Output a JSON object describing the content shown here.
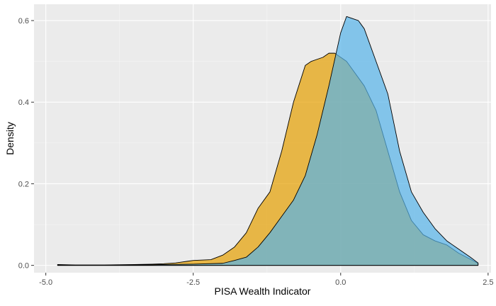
{
  "chart_data": {
    "type": "area",
    "title": "",
    "xlabel": "PISA Wealth Indicator",
    "ylabel": "Density",
    "xlim": [
      -5.2,
      2.55
    ],
    "ylim": [
      -0.018,
      0.64
    ],
    "x_ticks": [
      -5.0,
      -2.5,
      0.0,
      2.5
    ],
    "x_tick_labels": [
      "-5.0",
      "-2.5",
      "0.0",
      "2.5"
    ],
    "y_ticks": [
      0.0,
      0.2,
      0.4,
      0.6
    ],
    "y_tick_labels": [
      "0.0",
      "0.2",
      "0.4",
      "0.6"
    ],
    "grid": true,
    "legend": "none",
    "series": [
      {
        "color": "#E69F00",
        "fill_opacity": 0.7,
        "x": [
          -4.8,
          -4.5,
          -4.0,
          -3.5,
          -3.2,
          -3.0,
          -2.8,
          -2.6,
          -2.5,
          -2.2,
          -2.0,
          -1.8,
          -1.6,
          -1.4,
          -1.2,
          -1.0,
          -0.8,
          -0.6,
          -0.5,
          -0.4,
          -0.3,
          -0.2,
          -0.1,
          0.0,
          0.1,
          0.2,
          0.4,
          0.6,
          0.8,
          1.0,
          1.2,
          1.4,
          1.6,
          1.8,
          2.0,
          2.2,
          2.33
        ],
        "y": [
          0.002,
          0.001,
          0.001,
          0.002,
          0.003,
          0.004,
          0.006,
          0.01,
          0.012,
          0.014,
          0.025,
          0.045,
          0.08,
          0.14,
          0.18,
          0.28,
          0.4,
          0.49,
          0.5,
          0.505,
          0.51,
          0.52,
          0.52,
          0.51,
          0.5,
          0.48,
          0.44,
          0.38,
          0.28,
          0.18,
          0.11,
          0.075,
          0.06,
          0.05,
          0.03,
          0.015,
          0.005
        ]
      },
      {
        "color": "#56B4E9",
        "fill_opacity": 0.7,
        "x": [
          -4.8,
          -4.0,
          -3.5,
          -3.0,
          -2.5,
          -2.0,
          -1.8,
          -1.6,
          -1.4,
          -1.2,
          -1.0,
          -0.8,
          -0.6,
          -0.4,
          -0.2,
          0.0,
          0.1,
          0.2,
          0.3,
          0.4,
          0.6,
          0.8,
          1.0,
          1.2,
          1.4,
          1.6,
          1.8,
          2.0,
          2.2,
          2.33
        ],
        "y": [
          0.0005,
          0.0005,
          0.001,
          0.002,
          0.003,
          0.005,
          0.012,
          0.02,
          0.045,
          0.08,
          0.12,
          0.16,
          0.22,
          0.32,
          0.44,
          0.57,
          0.61,
          0.605,
          0.6,
          0.58,
          0.5,
          0.42,
          0.28,
          0.18,
          0.13,
          0.09,
          0.06,
          0.04,
          0.02,
          0.006
        ]
      }
    ]
  }
}
